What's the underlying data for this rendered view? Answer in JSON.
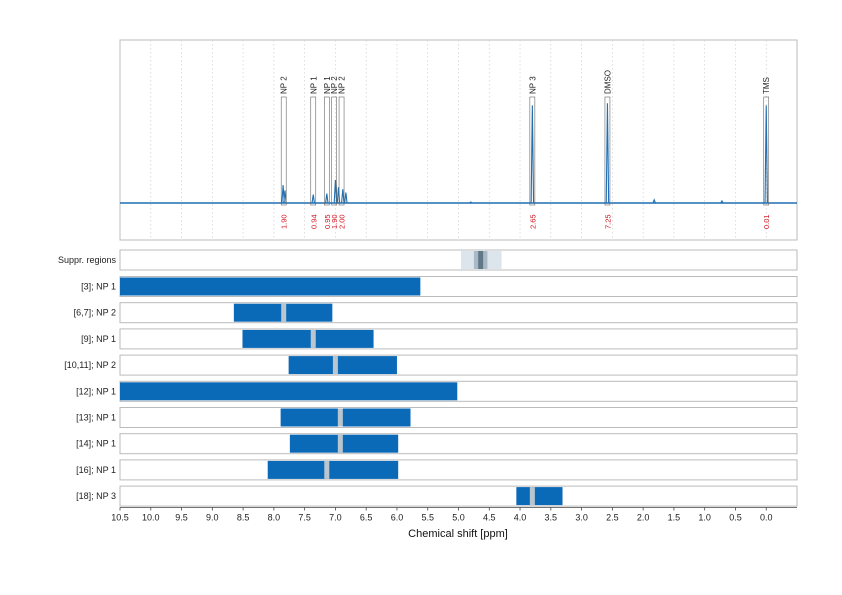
{
  "chart_data": {
    "type": "line",
    "xlabel": "Chemical shift [ppm]",
    "xlim": [
      10.5,
      -0.5
    ],
    "x_ticks": [
      10.5,
      10.0,
      9.5,
      9.0,
      8.5,
      8.0,
      7.5,
      7.0,
      6.5,
      6.0,
      5.5,
      5.0,
      4.5,
      4.0,
      3.5,
      3.0,
      2.5,
      2.0,
      1.5,
      1.0,
      0.5,
      0.0
    ],
    "x_tick_labels": [
      "10.5",
      "10.0",
      "9.5",
      "9.0",
      "8.5",
      "8.0",
      "7.5",
      "7.0",
      "6.5",
      "6.0",
      "5.5",
      "5.0",
      "4.5",
      "4.0",
      "3.5",
      "3.0",
      "2.5",
      "2.0",
      "1.5",
      "1.0",
      "0.5",
      "0.0"
    ],
    "colors": {
      "spectrum": "#1f6fb2",
      "bar": "#0a6ab8",
      "marker": "#b9c6cf",
      "integral": "#d0101a",
      "frame": "#bbbbbb",
      "supp_light": "#dde5ec",
      "supp_mid": "#a9b9c6",
      "supp_dark": "#607887"
    },
    "spectrum_peaks": [
      {
        "shift": 7.85,
        "height": 0.17
      },
      {
        "shift": 7.82,
        "height": 0.12
      },
      {
        "shift": 7.36,
        "height": 0.08
      },
      {
        "shift": 7.14,
        "height": 0.09
      },
      {
        "shift": 7.0,
        "height": 0.22
      },
      {
        "shift": 6.95,
        "height": 0.15
      },
      {
        "shift": 6.88,
        "height": 0.13
      },
      {
        "shift": 6.83,
        "height": 0.1
      },
      {
        "shift": 3.8,
        "height": 0.93
      },
      {
        "shift": 2.58,
        "height": 0.95
      },
      {
        "shift": 0.0,
        "height": 0.93
      },
      {
        "shift": 1.82,
        "height": 0.03
      },
      {
        "shift": 0.72,
        "height": 0.02
      },
      {
        "shift": 4.8,
        "height": 0.01
      }
    ],
    "peak_annotations": [
      {
        "label": "NP 2",
        "shift": 7.84,
        "integral": "1.90"
      },
      {
        "label": "NP 1",
        "shift": 7.36,
        "integral": "0.94"
      },
      {
        "label": "NP 1",
        "shift": 7.14,
        "integral": "0.95"
      },
      {
        "label": "NP 2",
        "shift": 7.02,
        "integral": "1.90"
      },
      {
        "label": "NP 2",
        "shift": 6.9,
        "integral": "2.00"
      },
      {
        "label": "NP 3",
        "shift": 3.8,
        "integral": "2.65"
      },
      {
        "label": "DMSO",
        "shift": 2.58,
        "integral": "7.25"
      },
      {
        "label": "TMS",
        "shift": 0.0,
        "integral": "0.01"
      }
    ],
    "suppressed_regions": {
      "label": "Suppr. regions",
      "outer": [
        4.96,
        4.3
      ],
      "inner": [
        4.75,
        4.53
      ],
      "core": [
        4.68,
        4.6
      ]
    },
    "rows": [
      {
        "label": "[3]; NP 1",
        "range": [
          10.5,
          5.62
        ],
        "marker": null
      },
      {
        "label": "[6,7]; NP 2",
        "range": [
          8.65,
          7.05
        ],
        "marker": 7.84
      },
      {
        "label": "[9]; NP 1",
        "range": [
          8.51,
          6.38
        ],
        "marker": 7.36
      },
      {
        "label": "[10,11]; NP 2",
        "range": [
          7.76,
          6.0
        ],
        "marker": 7.0
      },
      {
        "label": "[12]; NP 1",
        "range": [
          10.5,
          5.02
        ],
        "marker": null
      },
      {
        "label": "[13]; NP 1",
        "range": [
          7.89,
          5.78
        ],
        "marker": 6.92
      },
      {
        "label": "[14]; NP 1",
        "range": [
          7.74,
          5.98
        ],
        "marker": 6.92
      },
      {
        "label": "[16]; NP 1",
        "range": [
          8.1,
          5.98
        ],
        "marker": 7.14
      },
      {
        "label": "[18]; NP 3",
        "range": [
          4.06,
          3.31
        ],
        "marker": 3.8
      }
    ]
  }
}
